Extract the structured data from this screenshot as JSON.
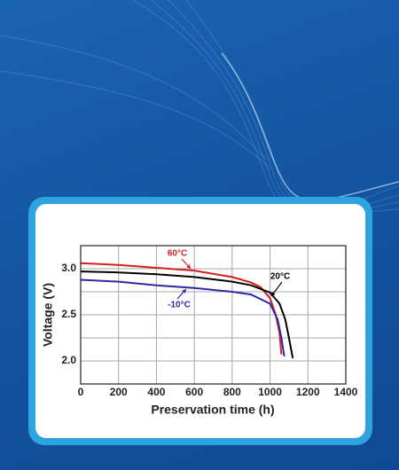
{
  "chart_data": {
    "type": "line",
    "x_label": "Preservation time (h)",
    "y_label": "Voltage (V)",
    "xlim": [
      0,
      1400
    ],
    "xticks": [
      0,
      200,
      400,
      600,
      800,
      1000,
      1200,
      1400
    ],
    "ylim": [
      1.75,
      3.25
    ],
    "yticks": [
      {
        "value": 2.0,
        "label": "2.0"
      },
      {
        "value": 2.5,
        "label": "2.5"
      },
      {
        "value": 3.0,
        "label": "3.0"
      }
    ],
    "y_minor_ticks": [
      2.25,
      2.75
    ],
    "grid": true,
    "series": [
      {
        "name": "60°C",
        "color": "#d42020",
        "x": [
          0,
          200,
          400,
          600,
          800,
          900,
          950,
          1000,
          1030,
          1050,
          1060
        ],
        "values": [
          3.06,
          3.04,
          3.01,
          2.98,
          2.91,
          2.85,
          2.8,
          2.68,
          2.5,
          2.3,
          2.07
        ]
      },
      {
        "name": "20°C",
        "color": "#000000",
        "x": [
          0,
          200,
          400,
          600,
          800,
          900,
          1000,
          1050,
          1080,
          1100,
          1120
        ],
        "values": [
          2.97,
          2.96,
          2.94,
          2.91,
          2.86,
          2.82,
          2.74,
          2.62,
          2.45,
          2.25,
          2.03
        ]
      },
      {
        "name": "-10°C",
        "color": "#2a2aa8",
        "x": [
          0,
          200,
          400,
          600,
          800,
          900,
          1000,
          1040,
          1060,
          1075
        ],
        "values": [
          2.88,
          2.86,
          2.82,
          2.79,
          2.75,
          2.72,
          2.62,
          2.45,
          2.25,
          2.05
        ]
      }
    ]
  }
}
